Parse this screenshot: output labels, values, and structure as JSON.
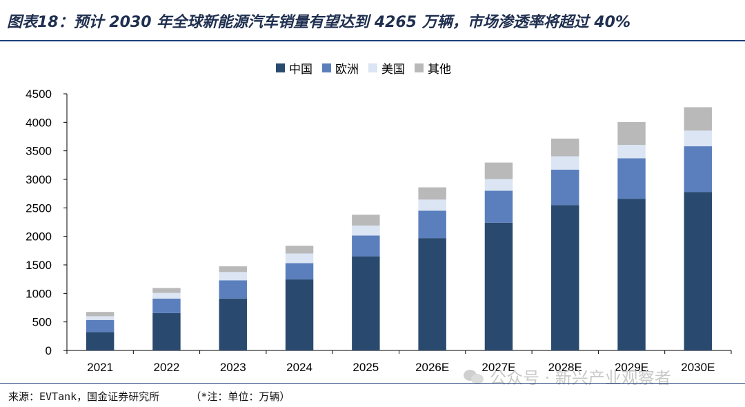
{
  "title": "图表18：预计 2030 年全球新能源汽车销量有望达到 4265 万辆，市场渗透率将超过 40%",
  "source": "来源：EVTank，国金证券研究所",
  "note": "（*注：单位：万辆）",
  "watermark": "公众号 · 新兴产业观察者",
  "colors": {
    "china": "#294a6e",
    "europe": "#5b7fbd",
    "usa": "#dbe5f3",
    "other": "#b9b9b9",
    "axis": "#000000",
    "title": "#1f2f4f",
    "rule": "#1f3f78"
  },
  "chart_data": {
    "type": "bar",
    "stacked": true,
    "title": "",
    "xlabel": "",
    "ylabel": "",
    "categories": [
      "2021",
      "2022",
      "2023",
      "2024",
      "2025",
      "2026E",
      "2027E",
      "2028E",
      "2029E",
      "2030E"
    ],
    "series": [
      {
        "name": "中国",
        "color": "#294a6e",
        "values": [
          320,
          655,
          910,
          1245,
          1650,
          1970,
          2240,
          2550,
          2660,
          2780
        ]
      },
      {
        "name": "欧洲",
        "color": "#5b7fbd",
        "values": [
          215,
          255,
          320,
          285,
          365,
          480,
          560,
          620,
          710,
          800
        ]
      },
      {
        "name": "美国",
        "color": "#dbe5f3",
        "values": [
          65,
          100,
          145,
          170,
          175,
          195,
          205,
          235,
          235,
          275
        ]
      },
      {
        "name": "其他",
        "color": "#b9b9b9",
        "values": [
          75,
          85,
          100,
          135,
          190,
          215,
          290,
          310,
          400,
          410
        ]
      }
    ],
    "ylim": [
      0,
      4500
    ],
    "yticks": [
      0,
      500,
      1000,
      1500,
      2000,
      2500,
      3000,
      3500,
      4000,
      4500
    ],
    "grid": false,
    "legend": "top-center"
  }
}
